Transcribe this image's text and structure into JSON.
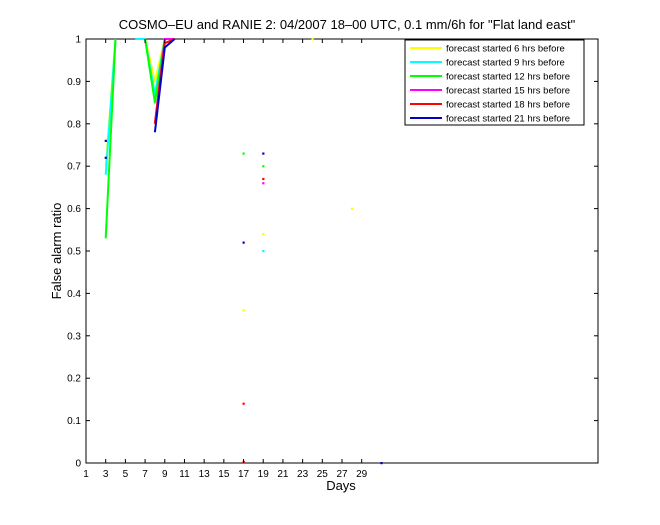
{
  "chart_data": {
    "type": "line",
    "title": "COSMO–EU and RANIE 2: 04/2007 18–00 UTC, 0.1 mm/6h for \"Flat land east\"",
    "xlabel": "Days",
    "ylabel": "False alarm ratio",
    "xlim": [
      1,
      53
    ],
    "ylim": [
      0,
      1
    ],
    "x_ticks": [
      1,
      3,
      5,
      7,
      9,
      11,
      13,
      15,
      17,
      19,
      21,
      23,
      25,
      27,
      29
    ],
    "x_tick_labels": [
      "1",
      "3",
      "5",
      "7",
      "9",
      "11",
      "13",
      "15",
      "17",
      "19",
      "21",
      "23",
      "25",
      "27",
      "29"
    ],
    "y_ticks": [
      0,
      0.1,
      0.2,
      0.3,
      0.4,
      0.5,
      0.6,
      0.7,
      0.8,
      0.9,
      1
    ],
    "y_tick_labels": [
      "0",
      "0.1",
      "0.2",
      "0.3",
      "0.4",
      "0.5",
      "0.6",
      "0.7",
      "0.8",
      "0.9",
      "1"
    ],
    "grid": false,
    "legend_position": "top-right",
    "series": [
      {
        "name": "forecast started 6 hrs before",
        "color": "#ffff00",
        "segments": [
          [
            [
              3,
              0.7
            ],
            [
              4,
              1.0
            ]
          ],
          [
            [
              7,
              1.0
            ],
            [
              8,
              0.9
            ],
            [
              9,
              1.0
            ],
            [
              10,
              1.0
            ]
          ]
        ],
        "points": [
          [
            17,
            0.36
          ],
          [
            19,
            0.54
          ],
          [
            28,
            0.6
          ],
          [
            24,
            1.0
          ]
        ]
      },
      {
        "name": "forecast started 9 hrs before",
        "color": "#00ffff",
        "segments": [
          [
            [
              3,
              0.68
            ],
            [
              4,
              1.0
            ]
          ],
          [
            [
              6,
              1.0
            ],
            [
              7,
              1.0
            ],
            [
              8,
              0.87
            ],
            [
              9,
              1.0
            ],
            [
              10,
              1.0
            ]
          ]
        ],
        "points": [
          [
            19,
            0.5
          ]
        ]
      },
      {
        "name": "forecast started 12 hrs before",
        "color": "#00ff00",
        "segments": [
          [
            [
              3,
              0.53
            ],
            [
              4,
              1.0
            ]
          ],
          [
            [
              7,
              1.0
            ],
            [
              8,
              0.85
            ],
            [
              9,
              1.0
            ],
            [
              10,
              1.0
            ]
          ]
        ],
        "points": [
          [
            17,
            0.73
          ],
          [
            19,
            0.7
          ]
        ]
      },
      {
        "name": "forecast started 15 hrs before",
        "color": "#ff00ff",
        "segments": [
          [
            [
              8,
              0.8
            ],
            [
              9,
              1.0
            ],
            [
              10,
              1.0
            ]
          ]
        ],
        "points": [
          [
            19,
            0.66
          ]
        ]
      },
      {
        "name": "forecast started 18 hrs before",
        "color": "#ff0000",
        "segments": [
          [
            [
              8,
              0.8
            ],
            [
              9,
              0.99
            ],
            [
              10,
              1.0
            ]
          ]
        ],
        "points": [
          [
            17,
            0.14
          ],
          [
            17,
            0.003
          ],
          [
            19,
            0.67
          ]
        ]
      },
      {
        "name": "forecast started 21 hrs before",
        "color": "#0000c8",
        "segments": [
          [
            [
              8,
              0.78
            ],
            [
              9,
              0.98
            ],
            [
              10,
              1.0
            ]
          ]
        ],
        "points": [
          [
            3,
            0.76
          ],
          [
            3,
            0.72
          ],
          [
            17,
            0.52
          ],
          [
            19,
            0.73
          ],
          [
            31,
            0.0
          ]
        ]
      }
    ]
  }
}
